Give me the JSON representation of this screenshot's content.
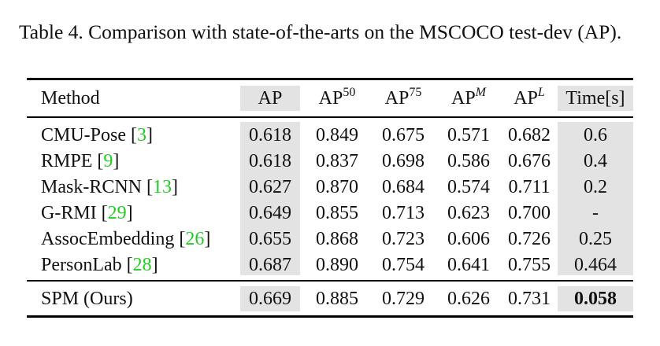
{
  "caption": "Table 4. Comparison with state-of-the-arts on the MSCOCO test-dev (AP).",
  "header": {
    "method": "Method",
    "ap": "AP",
    "ap50_base": "AP",
    "ap50_sup": "50",
    "ap75_base": "AP",
    "ap75_sup": "75",
    "apm_base": "AP",
    "apm_sup": "M",
    "apl_base": "AP",
    "apl_sup": "L",
    "time": "Time[s]"
  },
  "rows": [
    {
      "method": "CMU-Pose",
      "open": " [",
      "cite": "3",
      "close": "]",
      "ap": "0.618",
      "ap50": "0.849",
      "ap75": "0.675",
      "apm": "0.571",
      "apl": "0.682",
      "time": "0.6"
    },
    {
      "method": "RMPE",
      "open": " [",
      "cite": "9",
      "close": "]",
      "ap": "0.618",
      "ap50": "0.837",
      "ap75": "0.698",
      "apm": "0.586",
      "apl": "0.676",
      "time": "0.4"
    },
    {
      "method": "Mask-RCNN",
      "open": " [",
      "cite": "13",
      "close": "]",
      "ap": "0.627",
      "ap50": "0.870",
      "ap75": "0.684",
      "apm": "0.574",
      "apl": "0.711",
      "time": "0.2"
    },
    {
      "method": "G-RMI",
      "open": " [",
      "cite": "29",
      "close": "]",
      "ap": "0.649",
      "ap50": "0.855",
      "ap75": "0.713",
      "apm": "0.623",
      "apl": "0.700",
      "time": "-"
    },
    {
      "method": "AssocEmbedding",
      "open": " [",
      "cite": "26",
      "close": "]",
      "ap": "0.655",
      "ap50": "0.868",
      "ap75": "0.723",
      "apm": "0.606",
      "apl": "0.726",
      "time": "0.25"
    },
    {
      "method": "PersonLab",
      "open": " [",
      "cite": "28",
      "close": "]",
      "ap": "0.687",
      "ap50": "0.890",
      "ap75": "0.754",
      "apm": "0.641",
      "apl": "0.755",
      "time": "0.464"
    }
  ],
  "ours": {
    "method": "SPM (Ours)",
    "ap": "0.669",
    "ap50": "0.885",
    "ap75": "0.729",
    "apm": "0.626",
    "apl": "0.731",
    "time": "0.058"
  },
  "colors": {
    "shade": "#e3e3e3",
    "citation": "#22cc22",
    "rule": "#000000"
  }
}
